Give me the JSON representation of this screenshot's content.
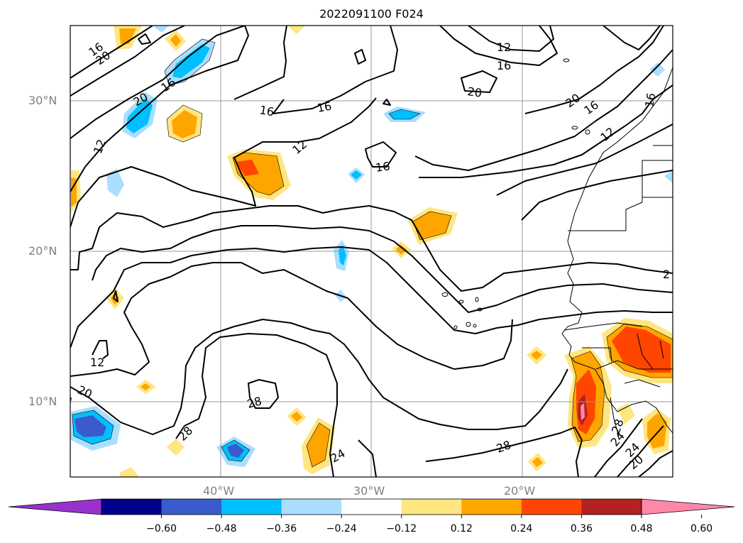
{
  "title": "2022091100 F024",
  "lat_labels": [
    "30°N",
    "20°N",
    "10°N"
  ],
  "lon_labels": [
    "40°W",
    "30°W",
    "20°W"
  ],
  "contour_labels": [
    "16",
    "20",
    "20",
    "16",
    "16",
    "16",
    "12",
    "12",
    "16",
    "20",
    "20",
    "16",
    "12",
    "16",
    "16",
    "12",
    "12",
    "20",
    "28",
    "28",
    "28",
    "24",
    "28",
    "24",
    "24",
    "20",
    "2"
  ],
  "colorbar": {
    "ticks": [
      "−0.60",
      "−0.48",
      "−0.36",
      "−0.24",
      "−0.12",
      "0.12",
      "0.24",
      "0.36",
      "0.48",
      "0.60"
    ],
    "colors": [
      "#9932cc",
      "#00008b",
      "#3a5bcc",
      "#00bfff",
      "#aadeff",
      "#ffffff",
      "#ffe680",
      "#ffa500",
      "#ff4500",
      "#b22222",
      "#ff88aa"
    ]
  }
}
